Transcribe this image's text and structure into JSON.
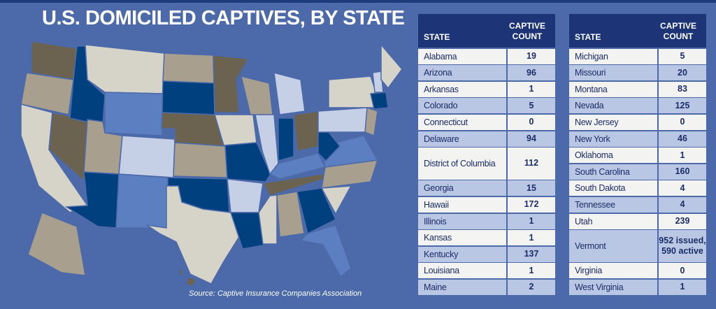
{
  "title": "U.S. DOMICILED CAPTIVES, BY STATE",
  "source": "Source: Captive Insurance Companies Association",
  "tables": [
    {
      "header": [
        "STATE",
        "CAPTIVE COUNT"
      ],
      "rows": [
        [
          "Alabama",
          19
        ],
        [
          "Arizona",
          96
        ],
        [
          "Arkansas",
          1
        ],
        [
          "Colorado",
          5
        ],
        [
          "Connecticut",
          0
        ],
        [
          "Delaware",
          94
        ],
        [
          "District of Columbia",
          112
        ],
        [
          "Georgia",
          15
        ],
        [
          "Hawaii",
          172
        ],
        [
          "Illinois",
          1
        ],
        [
          "Kansas",
          1
        ],
        [
          "Kentucky",
          137
        ],
        [
          "Louisiana",
          1
        ],
        [
          "Maine",
          2
        ]
      ]
    },
    {
      "header": [
        "STATE",
        "CAPTIVE COUNT"
      ],
      "rows": [
        [
          "Michigan",
          5
        ],
        [
          "Missouri",
          20
        ],
        [
          "Montana",
          83
        ],
        [
          "Nevada",
          125
        ],
        [
          "New Jersey",
          0
        ],
        [
          "New York",
          46
        ],
        [
          "Oklahoma",
          1
        ],
        [
          "South Carolina",
          160
        ],
        [
          "South Dakota",
          4
        ],
        [
          "Tennessee",
          4
        ],
        [
          "Utah",
          239
        ],
        [
          "Vermont",
          "952 issued, 590 active"
        ],
        [
          "Virginia",
          0
        ],
        [
          "West Virginia",
          1
        ]
      ]
    }
  ]
}
